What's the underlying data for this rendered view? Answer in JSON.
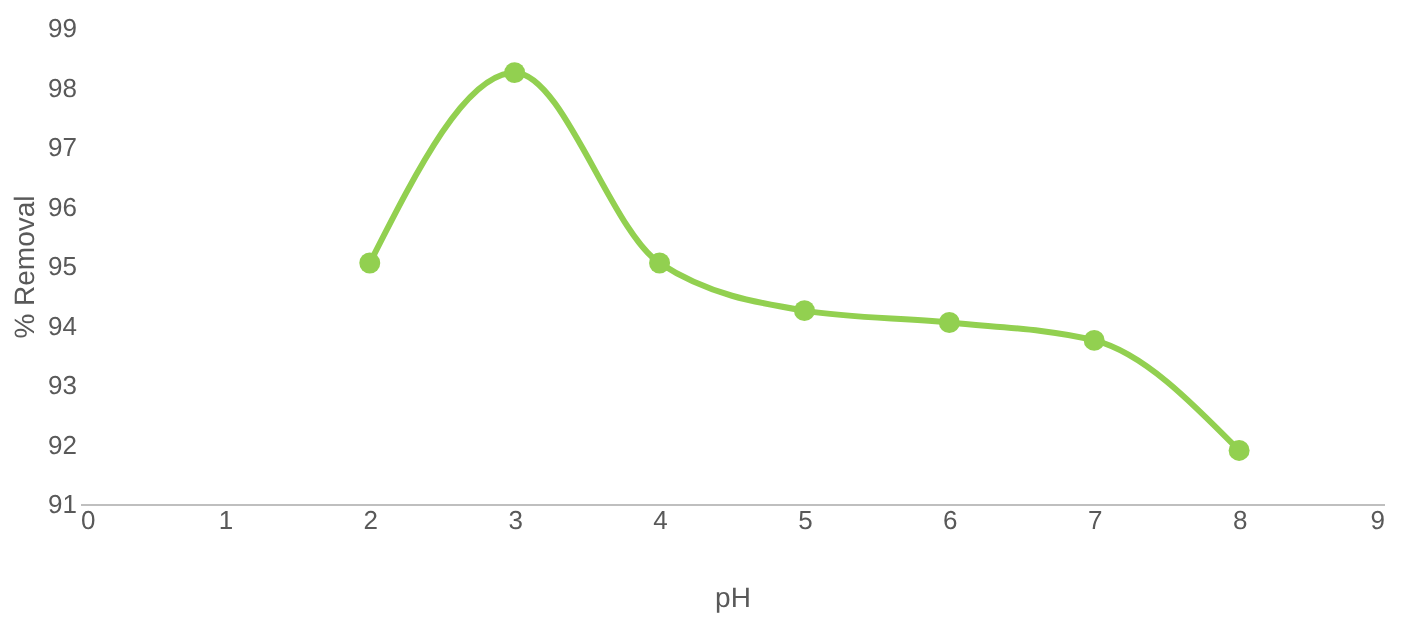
{
  "chart_data": {
    "type": "line",
    "xlabel": "pH",
    "ylabel": "% Removal",
    "x": [
      2,
      3,
      4,
      5,
      6,
      7,
      8
    ],
    "series": [
      {
        "color": "#92d050",
        "values": [
          95.05,
          98.25,
          95.05,
          94.25,
          94.05,
          93.75,
          91.9
        ]
      }
    ],
    "xlim": [
      0,
      9
    ],
    "xticks": [
      0,
      1,
      2,
      3,
      4,
      5,
      6,
      7,
      8,
      9
    ],
    "ylim": [
      91,
      99
    ],
    "yticks": [
      91,
      92,
      93,
      94,
      95,
      96,
      97,
      98,
      99
    ],
    "marker": "circle",
    "line_style": "solid",
    "grid": false
  }
}
